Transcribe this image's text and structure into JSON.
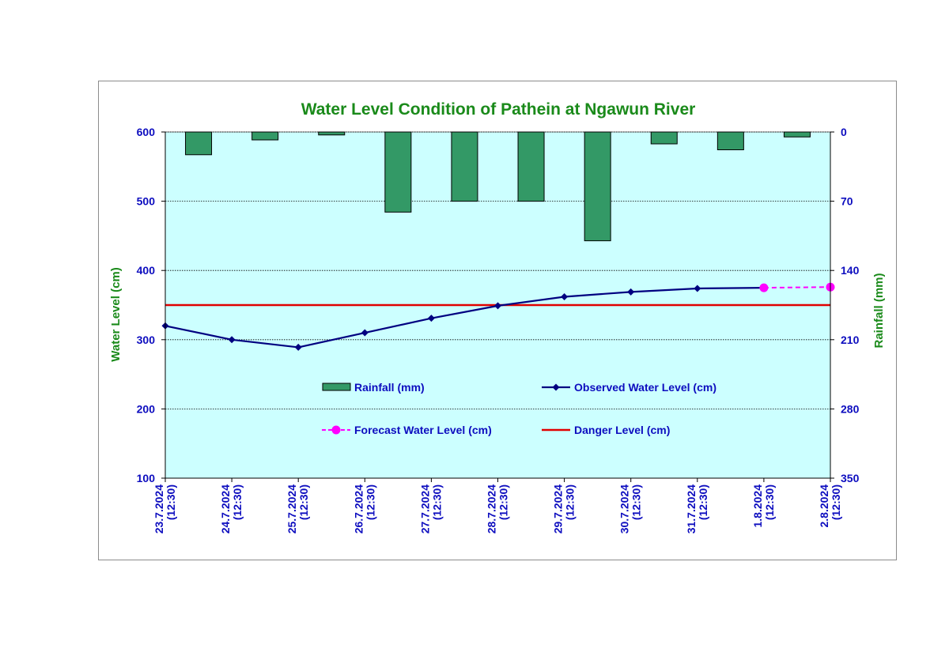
{
  "chart_data": {
    "type": "bar",
    "title": "Water Level Condition of Pathein at Ngawun River",
    "ylabel_left": "Water Level (cm)",
    "ylabel_right": "Rainfall (mm)",
    "ylim_left": [
      100,
      600
    ],
    "yticks_left": [
      100,
      200,
      300,
      400,
      500,
      600
    ],
    "ylim_right": [
      0,
      350
    ],
    "yticks_right": [
      0,
      70,
      140,
      210,
      280,
      350
    ],
    "right_axis_inverted": true,
    "grid": true,
    "legend": "inside-center",
    "categories": [
      [
        "23.7.2024",
        "(12:30)"
      ],
      [
        "24.7.2024",
        "(12:30)"
      ],
      [
        "25.7.2024",
        "(12:30)"
      ],
      [
        "26.7.2024",
        "(12:30)"
      ],
      [
        "27.7.2024",
        "(12:30)"
      ],
      [
        "28.7.2024",
        "(12:30)"
      ],
      [
        "29.7.2024",
        "(12:30)"
      ],
      [
        "30.7.2024",
        "(12:30)"
      ],
      [
        "31.7.2024",
        "(12:30)"
      ],
      [
        "1.8.2024",
        "(12:30)"
      ],
      [
        "2.8.2024",
        "(12:30)"
      ]
    ],
    "series": [
      {
        "name": "Rainfall (mm)",
        "type": "bar",
        "axis": "right",
        "color": "#339966",
        "values": [
          23,
          8,
          3,
          81,
          70,
          70,
          110,
          12,
          18,
          5,
          null
        ]
      },
      {
        "name": "Observed Water Level (cm)",
        "type": "line",
        "axis": "left",
        "color": "#000080",
        "marker": "diamond",
        "values": [
          320,
          300,
          289,
          310,
          331,
          349,
          362,
          369,
          374,
          375,
          null
        ]
      },
      {
        "name": "Forecast Water Level (cm)",
        "type": "line",
        "axis": "left",
        "color": "#ff00ff",
        "marker": "circle",
        "dashed": true,
        "values": [
          null,
          null,
          null,
          null,
          null,
          null,
          null,
          null,
          null,
          375,
          376
        ]
      },
      {
        "name": "Danger Level (cm)",
        "type": "hline",
        "axis": "left",
        "color": "#e00000",
        "value": 350
      }
    ],
    "colors": {
      "plot_background": "#ccffff",
      "title": "#1a8a1a",
      "ticks": "#0d0dbf"
    }
  }
}
